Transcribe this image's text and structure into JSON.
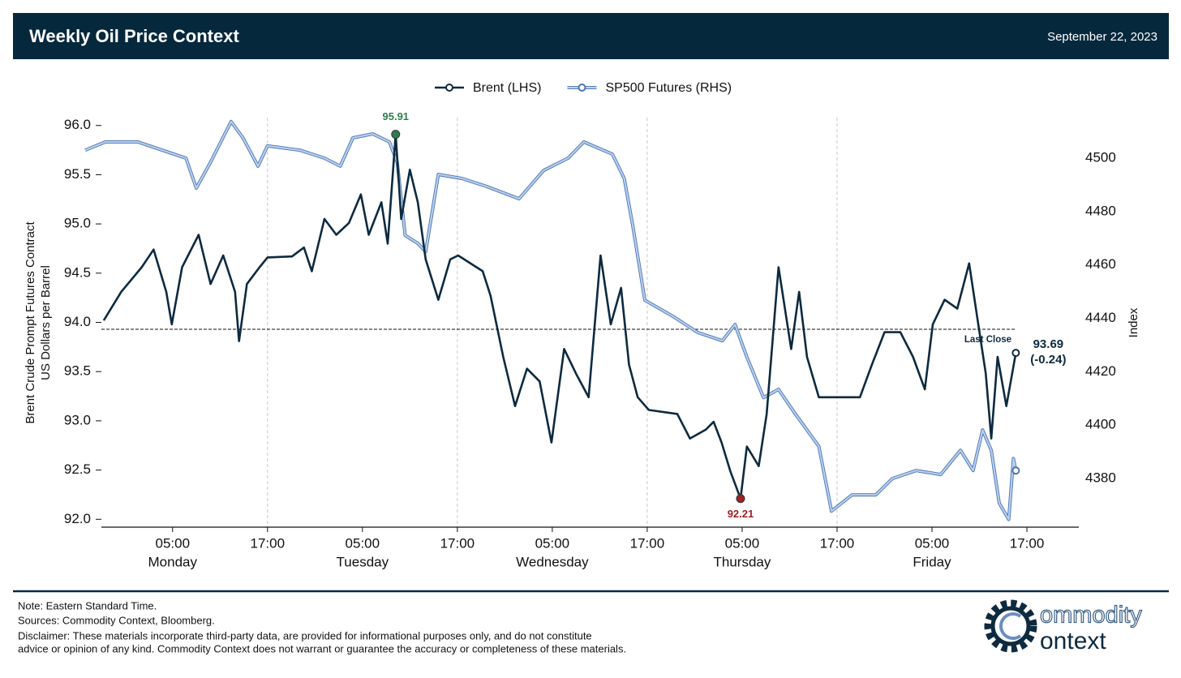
{
  "header": {
    "title": "Weekly Oil Price Context",
    "date": "September 22, 2023"
  },
  "chart_data": {
    "type": "line",
    "ylabel": [
      "Brent Crude Prompt Futures Contract",
      "US Dollars per Barrel"
    ],
    "y2label": "Index",
    "xlim": [
      -6.05,
      119.56
    ],
    "ylim": [
      91.92,
      96.08
    ],
    "y2lim": [
      4361.8,
      4515.2
    ],
    "xticks": [
      {
        "value": 5,
        "label": "05:00"
      },
      {
        "value": 17,
        "label": "17:00"
      },
      {
        "value": 29,
        "label": "05:00"
      },
      {
        "value": 41,
        "label": "17:00"
      },
      {
        "value": 53,
        "label": "05:00"
      },
      {
        "value": 65,
        "label": "17:00"
      },
      {
        "value": 77,
        "label": "05:00"
      },
      {
        "value": 89,
        "label": "17:00"
      },
      {
        "value": 101,
        "label": "05:00"
      },
      {
        "value": 113,
        "label": "17:00"
      }
    ],
    "xtick_days": [
      {
        "value": 5,
        "label": "Monday"
      },
      {
        "value": 29,
        "label": "Tuesday"
      },
      {
        "value": 53,
        "label": "Wednesday"
      },
      {
        "value": 77,
        "label": "Thursday"
      },
      {
        "value": 101,
        "label": "Friday"
      }
    ],
    "vgrid": [
      17,
      41,
      65,
      89
    ],
    "yticks": [
      {
        "value": 92,
        "label": "92.0"
      },
      {
        "value": 92.5,
        "label": "92.5"
      },
      {
        "value": 93,
        "label": "93.0"
      },
      {
        "value": 93.5,
        "label": "93.5"
      },
      {
        "value": 94,
        "label": "94.0"
      },
      {
        "value": 94.5,
        "label": "94.5"
      },
      {
        "value": 95,
        "label": "95.0"
      },
      {
        "value": 95.5,
        "label": "95.5"
      },
      {
        "value": 96,
        "label": "96.0"
      }
    ],
    "y2ticks": [
      4380,
      4400,
      4420,
      4440,
      4460,
      4480,
      4500
    ],
    "series": [
      {
        "name": "Brent (LHS)",
        "color": "#0d2a3f",
        "axis": "y",
        "x": [
          -3.7,
          -1.5,
          1.1,
          2.6,
          4.2,
          4.9,
          6.2,
          8.3,
          9.8,
          11.4,
          12.9,
          13.4,
          14.4,
          16.0,
          17.0,
          20.1,
          21.6,
          22.6,
          24.2,
          25.7,
          27.3,
          28.8,
          29.8,
          31.4,
          32.2,
          33.2,
          33.9,
          35.0,
          36.0,
          37.0,
          38.6,
          40.1,
          41.1,
          44.2,
          45.2,
          46.8,
          48.3,
          49.8,
          51.4,
          52.9,
          54.5,
          56.0,
          57.6,
          59.1,
          60.4,
          61.7,
          62.7,
          63.8,
          65.2,
          68.8,
          70.4,
          72.4,
          73.4,
          74.4,
          75.5,
          76.8,
          77.6,
          79.1,
          80.1,
          81.6,
          83.2,
          84.2,
          85.2,
          86.7,
          88.8,
          91.9,
          93.4,
          95.0,
          97.0,
          98.6,
          100.1,
          101.1,
          102.6,
          104.2,
          105.7,
          106.7,
          107.8,
          108.5,
          109.3,
          110.4,
          111.6
        ],
        "values": [
          94.02,
          94.31,
          94.56,
          94.74,
          94.31,
          93.98,
          94.56,
          94.89,
          94.39,
          94.68,
          94.31,
          93.81,
          94.39,
          94.56,
          94.66,
          94.67,
          94.76,
          94.52,
          95.05,
          94.89,
          95.01,
          95.3,
          94.89,
          95.22,
          94.8,
          95.91,
          95.05,
          95.55,
          95.22,
          94.64,
          94.23,
          94.64,
          94.68,
          94.52,
          94.27,
          93.65,
          93.15,
          93.53,
          93.4,
          92.78,
          93.73,
          93.48,
          93.24,
          94.68,
          93.98,
          94.35,
          93.57,
          93.24,
          93.11,
          93.07,
          92.82,
          92.91,
          92.99,
          92.78,
          92.49,
          92.21,
          92.74,
          92.54,
          93.07,
          94.56,
          93.73,
          94.31,
          93.65,
          93.24,
          93.24,
          93.24,
          93.57,
          93.9,
          93.9,
          93.65,
          93.32,
          93.98,
          94.23,
          94.14,
          94.6,
          94.06,
          93.48,
          92.82,
          93.65,
          93.15,
          93.69
        ]
      },
      {
        "name": "SP500 Futures (RHS)",
        "color": "#b7cff0",
        "axis": "y2",
        "x": [
          -6.05,
          -3.5,
          0.6,
          3.7,
          6.7,
          8.0,
          9.8,
          12.4,
          13.9,
          15.8,
          17.0,
          21.1,
          24.2,
          26.2,
          27.8,
          30.3,
          32.4,
          33.4,
          34.4,
          36.0,
          37.0,
          38.6,
          41.6,
          44.7,
          48.8,
          51.9,
          55.0,
          57.0,
          60.6,
          62.1,
          63.2,
          64.7,
          68.3,
          71.4,
          74.5,
          76.1,
          77.6,
          79.7,
          81.6,
          83.7,
          86.7,
          88.3,
          90.9,
          93.9,
          96.0,
          99.0,
          102.1,
          104.6,
          106.2,
          107.4,
          108.5,
          109.5,
          110.7,
          111.3,
          111.6
        ],
        "values": [
          4503.0,
          4506.1,
          4506.1,
          4503.0,
          4500.0,
          4488.8,
          4498.5,
          4513.7,
          4507.6,
          4497.0,
          4504.6,
          4503.0,
          4500.0,
          4497.0,
          4507.6,
          4509.1,
          4506.1,
          4498.5,
          4471.1,
          4468.1,
          4465.0,
          4493.9,
          4492.4,
          4489.4,
          4484.8,
          4495.4,
          4500.0,
          4506.1,
          4501.5,
          4492.4,
          4474.2,
          4446.8,
          4440.7,
          4434.7,
          4431.6,
          4437.7,
          4425.5,
          4410.3,
          4413.4,
          4404.3,
          4392.1,
          4367.8,
          4373.9,
          4373.9,
          4380.0,
          4383.0,
          4381.5,
          4390.6,
          4383.0,
          4398.2,
          4390.6,
          4370.8,
          4364.7,
          4387.5,
          4383.0
        ]
      }
    ],
    "high": {
      "x": 33.2,
      "value": 95.91,
      "color": "#2e7d4f"
    },
    "low": {
      "x": 76.8,
      "value": 92.21,
      "color": "#9b2226"
    },
    "last": {
      "x": 111.6,
      "value": 93.69,
      "change": {
        "value": -0.24,
        "label": "(-0.24)"
      }
    },
    "last_close": {
      "value": 93.93,
      "label": "Last Close"
    }
  },
  "footer": {
    "notes": [
      "Note: Eastern Standard Time.",
      "Sources: Commodity Context, Bloomberg.",
      "Disclaimer: These materials incorporate third-party data, are provided for informational purposes only, and do not constitute",
      "advice or opinion of any kind. Commodity Context does not warrant or guarantee the accuracy or completeness of these materials."
    ]
  },
  "logo": {
    "top": "ommodity",
    "bottom": "ontext"
  }
}
